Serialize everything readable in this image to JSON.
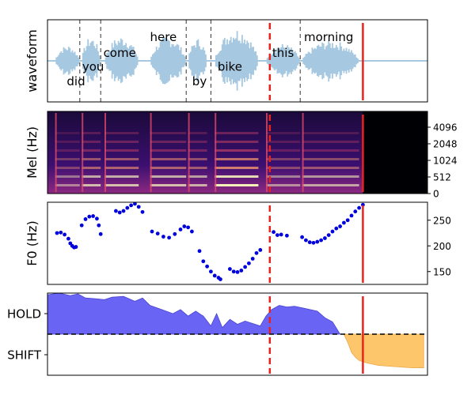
{
  "chart_data": [
    {
      "type": "area",
      "ylabel": "waveform",
      "xlim": [
        0,
        1
      ],
      "x_ticks_visible": false,
      "y_ticks_visible": false,
      "waveform_color": "#a6c8e0",
      "words": [
        {
          "text": "did",
          "x": 0.075,
          "level": 0.2
        },
        {
          "text": "you",
          "x": 0.12,
          "level": 0.38
        },
        {
          "text": "come",
          "x": 0.19,
          "level": 0.55
        },
        {
          "text": "here",
          "x": 0.305,
          "level": 0.74
        },
        {
          "text": "by",
          "x": 0.4,
          "level": 0.2
        },
        {
          "text": "bike",
          "x": 0.48,
          "level": 0.38
        },
        {
          "text": "this",
          "x": 0.62,
          "level": 0.55
        },
        {
          "text": "morning",
          "x": 0.74,
          "level": 0.74
        }
      ],
      "word_boundaries": [
        0.085,
        0.14,
        0.365,
        0.43,
        0.665
      ],
      "segments": [
        {
          "start": 0.02,
          "end": 0.085,
          "amp": 0.45
        },
        {
          "start": 0.09,
          "end": 0.14,
          "amp": 0.7
        },
        {
          "start": 0.15,
          "end": 0.24,
          "amp": 0.72
        },
        {
          "start": 0.27,
          "end": 0.365,
          "amp": 0.72
        },
        {
          "start": 0.37,
          "end": 0.42,
          "amp": 0.65
        },
        {
          "start": 0.44,
          "end": 0.555,
          "amp": 0.95
        },
        {
          "start": 0.575,
          "end": 0.665,
          "amp": 0.5
        },
        {
          "start": 0.67,
          "end": 0.82,
          "amp": 0.6
        }
      ],
      "current_position": 0.83,
      "reference_position": 0.585
    },
    {
      "type": "heatmap",
      "ylabel": "Mel (Hz)",
      "yticks": [
        "0",
        "512",
        "1024",
        "2048",
        "4096"
      ],
      "colormap": [
        "#000004",
        "#3b0f70",
        "#8c2981",
        "#de4968",
        "#fe9f6d",
        "#fcfdbf"
      ],
      "active_until": 0.83,
      "current_position": 0.83,
      "reference_position": 0.585
    },
    {
      "type": "scatter",
      "ylabel": "F0 (Hz)",
      "ylim": [
        125,
        285
      ],
      "yticks": [
        150,
        200,
        250
      ],
      "point_color": "#0000dd",
      "points": [
        [
          0.025,
          225
        ],
        [
          0.035,
          226
        ],
        [
          0.045,
          222
        ],
        [
          0.055,
          214
        ],
        [
          0.06,
          205
        ],
        [
          0.065,
          200
        ],
        [
          0.07,
          197
        ],
        [
          0.075,
          198
        ],
        [
          0.09,
          240
        ],
        [
          0.1,
          252
        ],
        [
          0.11,
          257
        ],
        [
          0.12,
          258
        ],
        [
          0.13,
          253
        ],
        [
          0.135,
          240
        ],
        [
          0.14,
          223
        ],
        [
          0.18,
          268
        ],
        [
          0.19,
          265
        ],
        [
          0.2,
          268
        ],
        [
          0.21,
          274
        ],
        [
          0.22,
          279
        ],
        [
          0.23,
          282
        ],
        [
          0.24,
          276
        ],
        [
          0.25,
          266
        ],
        [
          0.275,
          228
        ],
        [
          0.29,
          224
        ],
        [
          0.305,
          218
        ],
        [
          0.32,
          216
        ],
        [
          0.335,
          223
        ],
        [
          0.35,
          232
        ],
        [
          0.36,
          238
        ],
        [
          0.37,
          236
        ],
        [
          0.38,
          228
        ],
        [
          0.4,
          190
        ],
        [
          0.41,
          170
        ],
        [
          0.42,
          160
        ],
        [
          0.43,
          150
        ],
        [
          0.44,
          142
        ],
        [
          0.45,
          138
        ],
        [
          0.455,
          135
        ],
        [
          0.48,
          155
        ],
        [
          0.49,
          150
        ],
        [
          0.5,
          149
        ],
        [
          0.51,
          152
        ],
        [
          0.52,
          159
        ],
        [
          0.53,
          166
        ],
        [
          0.54,
          175
        ],
        [
          0.55,
          186
        ],
        [
          0.56,
          192
        ],
        [
          0.595,
          227
        ],
        [
          0.605,
          221
        ],
        [
          0.615,
          222
        ],
        [
          0.63,
          220
        ],
        [
          0.67,
          217
        ],
        [
          0.68,
          211
        ],
        [
          0.69,
          207
        ],
        [
          0.7,
          206
        ],
        [
          0.71,
          208
        ],
        [
          0.72,
          211
        ],
        [
          0.73,
          215
        ],
        [
          0.74,
          221
        ],
        [
          0.75,
          228
        ],
        [
          0.76,
          234
        ],
        [
          0.77,
          238
        ],
        [
          0.78,
          245
        ],
        [
          0.79,
          250
        ],
        [
          0.8,
          259
        ],
        [
          0.81,
          267
        ],
        [
          0.82,
          274
        ],
        [
          0.83,
          280
        ]
      ],
      "current_position": 0.83,
      "reference_position": 0.585
    },
    {
      "type": "area",
      "yticks": [
        "HOLD",
        "SHIFT"
      ],
      "hold_color": "#6a64f5",
      "shift_color": "#fdc66a",
      "threshold": 0.5,
      "hold": [
        [
          0.0,
          0.98
        ],
        [
          0.03,
          1.0
        ],
        [
          0.06,
          0.97
        ],
        [
          0.08,
          0.99
        ],
        [
          0.1,
          0.94
        ],
        [
          0.13,
          0.93
        ],
        [
          0.15,
          0.92
        ],
        [
          0.17,
          0.95
        ],
        [
          0.2,
          0.96
        ],
        [
          0.23,
          0.9
        ],
        [
          0.25,
          0.94
        ],
        [
          0.27,
          0.85
        ],
        [
          0.3,
          0.8
        ],
        [
          0.33,
          0.75
        ],
        [
          0.35,
          0.8
        ],
        [
          0.37,
          0.72
        ],
        [
          0.39,
          0.78
        ],
        [
          0.41,
          0.72
        ],
        [
          0.43,
          0.6
        ],
        [
          0.445,
          0.75
        ],
        [
          0.46,
          0.58
        ],
        [
          0.48,
          0.68
        ],
        [
          0.5,
          0.62
        ],
        [
          0.52,
          0.66
        ],
        [
          0.54,
          0.63
        ],
        [
          0.56,
          0.6
        ],
        [
          0.575,
          0.72
        ],
        [
          0.59,
          0.8
        ],
        [
          0.61,
          0.85
        ],
        [
          0.63,
          0.83
        ],
        [
          0.65,
          0.84
        ],
        [
          0.67,
          0.82
        ],
        [
          0.69,
          0.8
        ],
        [
          0.71,
          0.78
        ],
        [
          0.73,
          0.7
        ],
        [
          0.75,
          0.65
        ],
        [
          0.77,
          0.5
        ]
      ],
      "shift": [
        [
          0.78,
          0.5
        ],
        [
          0.79,
          0.4
        ],
        [
          0.8,
          0.28
        ],
        [
          0.81,
          0.22
        ],
        [
          0.82,
          0.18
        ],
        [
          0.84,
          0.15
        ],
        [
          0.87,
          0.12
        ],
        [
          0.9,
          0.11
        ],
        [
          0.93,
          0.1
        ],
        [
          0.96,
          0.09
        ],
        [
          0.99,
          0.09
        ]
      ],
      "current_position": 0.83,
      "reference_position": 0.585
    }
  ]
}
